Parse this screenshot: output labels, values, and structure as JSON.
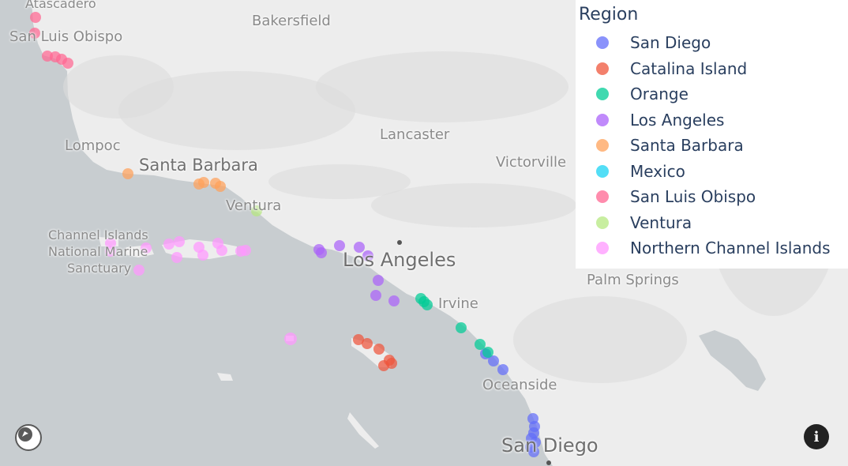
{
  "map": {
    "colors": {
      "water": "#c8cdd0",
      "land": "#ededed",
      "relief": "#dcdcdc",
      "lake": "#c8cdd0"
    },
    "places": {
      "atascadero": "Atascadero",
      "san_luis_obispo": "San Luis Obispo",
      "bakersfield": "Bakersfield",
      "lompoc": "Lompoc",
      "santa_barbara": "Santa Barbara",
      "lancaster": "Lancaster",
      "victorville": "Victorville",
      "ventura": "Ventura",
      "channel_islands_1": "Channel Islands",
      "channel_islands_2": "National Marine",
      "channel_islands_3": "Sanctuary",
      "los_angeles": "Los Angeles",
      "irvine": "Irvine",
      "palm_springs": "Palm Springs",
      "oceanside": "Oceanside",
      "san_diego": "San Diego"
    },
    "controls": {
      "info_icon": "i"
    }
  },
  "legend": {
    "title": "Region",
    "items": [
      {
        "label": "San Diego",
        "color": "#636efa"
      },
      {
        "label": "Catalina Island",
        "color": "#ef553b"
      },
      {
        "label": "Orange",
        "color": "#00cc96"
      },
      {
        "label": "Los Angeles",
        "color": "#ab63fa"
      },
      {
        "label": "Santa Barbara",
        "color": "#ffa15a"
      },
      {
        "label": "Mexico",
        "color": "#19d3f3"
      },
      {
        "label": "San Luis Obispo",
        "color": "#ff6692"
      },
      {
        "label": "Ventura",
        "color": "#b6e880"
      },
      {
        "label": "Northern Channel Islands",
        "color": "#ff97ff"
      }
    ]
  }
}
